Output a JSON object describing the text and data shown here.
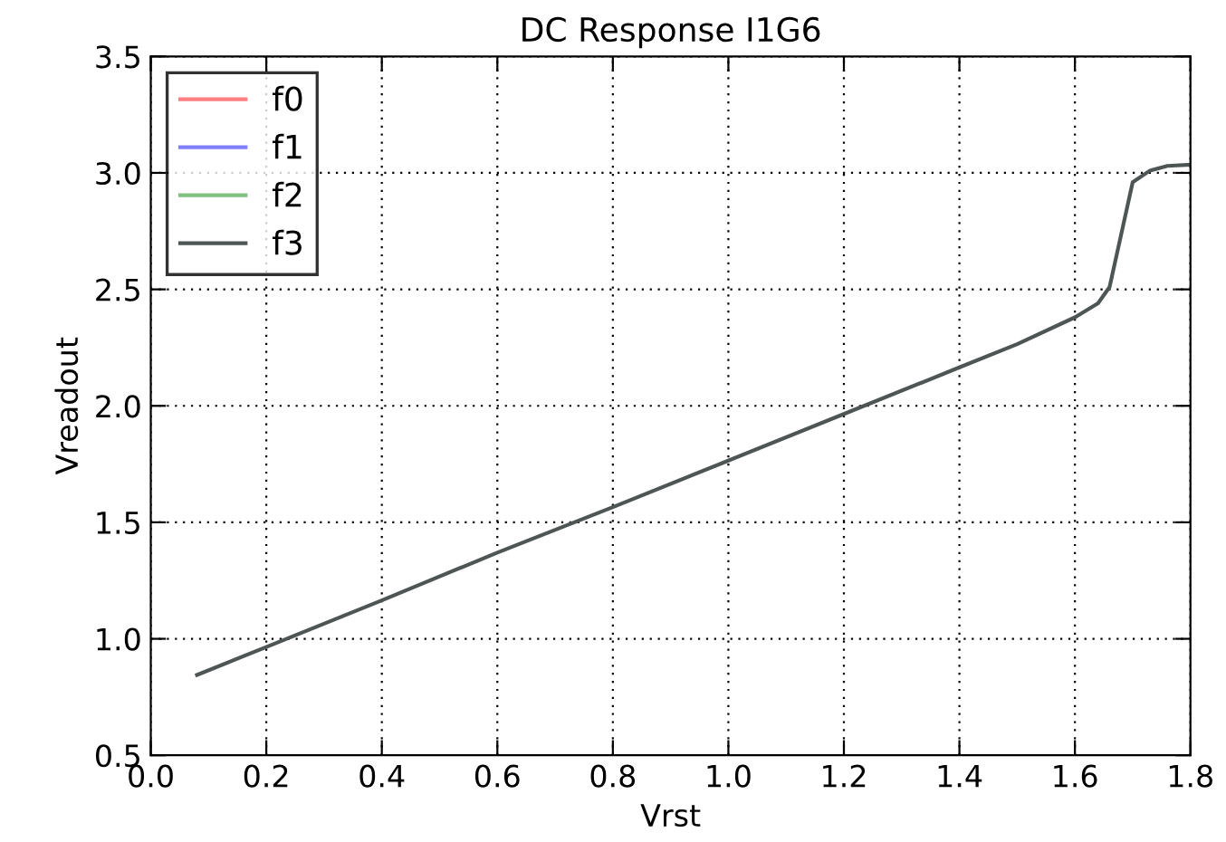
{
  "chart_data": {
    "type": "line",
    "title": "DC Response I1G6",
    "xlabel": "Vrst",
    "ylabel": "Vreadout",
    "x": [
      0.08,
      0.2,
      0.4,
      0.6,
      0.8,
      1.0,
      1.2,
      1.4,
      1.5,
      1.6,
      1.64,
      1.66,
      1.7,
      1.73,
      1.76,
      1.8
    ],
    "series": [
      {
        "name": "f0",
        "color": "#ff8080",
        "values": [
          null,
          null,
          null,
          null,
          null,
          null,
          null,
          null,
          null,
          null,
          null,
          null,
          null,
          null,
          null,
          null
        ]
      },
      {
        "name": "f1",
        "color": "#8080ff",
        "values": [
          null,
          null,
          null,
          null,
          null,
          null,
          null,
          null,
          null,
          null,
          null,
          null,
          null,
          null,
          null,
          null
        ]
      },
      {
        "name": "f2",
        "color": "#80c080",
        "values": [
          null,
          null,
          null,
          null,
          null,
          null,
          null,
          null,
          null,
          null,
          null,
          null,
          null,
          null,
          null,
          null
        ]
      },
      {
        "name": "f3",
        "color": "#4d5555",
        "values": [
          0.845,
          0.965,
          1.165,
          1.37,
          1.565,
          1.765,
          1.965,
          2.165,
          2.265,
          2.38,
          2.44,
          2.51,
          2.96,
          3.01,
          3.03,
          3.035
        ]
      }
    ],
    "xlim": [
      0.0,
      1.8
    ],
    "xticks": [
      {
        "value": 0.0,
        "label": "0.0"
      },
      0.2,
      0.4,
      0.6,
      0.8,
      {
        "value": 1.0,
        "label": "1.0"
      },
      1.2,
      1.4,
      1.6,
      1.8
    ],
    "ylim": [
      0.5,
      3.5
    ],
    "yticks": [
      0.5,
      {
        "value": 1.0,
        "label": "1.0"
      },
      1.5,
      {
        "value": 2.0,
        "label": "2.0"
      },
      2.5,
      {
        "value": 3.0,
        "label": "3.0"
      },
      3.5
    ],
    "grid": true,
    "legend": "top left",
    "marker": "none",
    "line_style": "solid"
  }
}
